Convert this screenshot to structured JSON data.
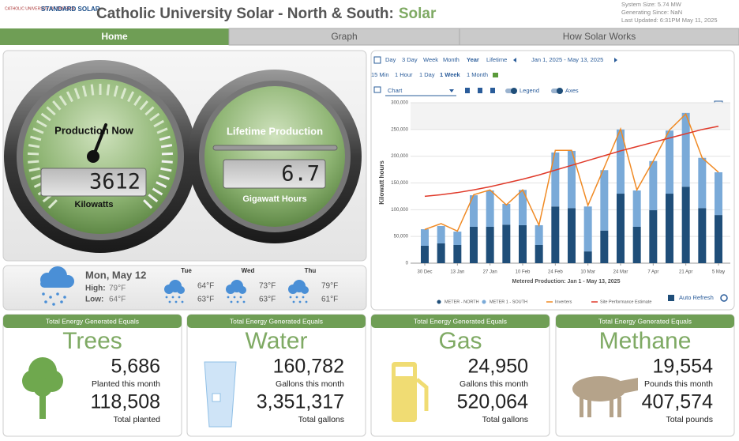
{
  "header": {
    "logo_left": "CATHOLIC UNIVERSITY OF AMERICA",
    "logo_right": "STANDARD SOLAR",
    "title": "Catholic University Solar - North & South:",
    "title_accent": "Solar",
    "info": [
      "System Size: 5.74 MW",
      "Generating Since: NaN",
      "Last Updated: 6:31PM May 11, 2025"
    ]
  },
  "tabs": [
    "Home",
    "Graph",
    "How Solar Works"
  ],
  "gauges": [
    {
      "label": "Production Now",
      "value": "3612",
      "unit": "Kilowatts"
    },
    {
      "label": "Lifetime Production",
      "value": "6.7",
      "unit": "Gigawatt Hours"
    }
  ],
  "weather": {
    "today": {
      "day": "Mon, May 12",
      "high_label": "High:",
      "high": "79°F",
      "low_label": "Low:",
      "low": "64°F"
    },
    "forecast": [
      {
        "day": "Tue",
        "high": "64°F",
        "low": "63°F"
      },
      {
        "day": "Wed",
        "high": "73°F",
        "low": "63°F"
      },
      {
        "day": "Thu",
        "high": "79°F",
        "low": "61°F"
      }
    ]
  },
  "controls": {
    "ranges": [
      "Day",
      "3 Day",
      "Week",
      "Month",
      "Year",
      "Lifetime"
    ],
    "date_range": "Jan 1, 2025 - May 13, 2025",
    "intervals": [
      "15 Min",
      "1 Hour",
      "1 Day",
      "1 Week",
      "1 Month"
    ],
    "chart_select": "Chart",
    "toggles": [
      "Legend",
      "Axes"
    ],
    "auto_refresh": "Auto Refresh"
  },
  "chart_data": {
    "type": "bar",
    "stacked": true,
    "ylabel": "Kilowatt hours",
    "xlabel": "Metered Production: Jan 1 - May 13, 2025",
    "categories": [
      "30 Dec",
      null,
      "13 Jan",
      null,
      "27 Jan",
      null,
      "10 Feb",
      null,
      "24 Feb",
      null,
      "10 Mar",
      null,
      "24 Mar",
      null,
      "7 Apr",
      null,
      "21 Apr",
      null,
      "5 May"
    ],
    "series": [
      {
        "name": "METER - NORTH",
        "type": "bar",
        "color": "#1f4e79",
        "values": [
          32500,
          37000,
          34000,
          68000,
          68000,
          72000,
          71000,
          34000,
          106000,
          103000,
          22000,
          61000,
          130000,
          68000,
          99000,
          130000,
          143000,
          103000,
          90000
        ]
      },
      {
        "name": "METER 1 - SOUTH",
        "type": "bar",
        "color": "#7aaad8",
        "values": [
          31000,
          32500,
          25000,
          59000,
          68000,
          39000,
          66000,
          37000,
          101000,
          107000,
          84000,
          113000,
          120000,
          68000,
          92000,
          118000,
          138000,
          94000,
          80000
        ]
      },
      {
        "name": "Inverters",
        "type": "line",
        "color": "#f08a24",
        "values": [
          63000,
          74000,
          60000,
          128000,
          137000,
          109000,
          137000,
          71000,
          211000,
          211000,
          108000,
          179000,
          251000,
          137000,
          191000,
          249000,
          279000,
          197000,
          170000
        ]
      },
      {
        "name": "Site Performance Estimate",
        "type": "line",
        "color": "#e03a2a",
        "values": [
          125000,
          128000,
          132000,
          137000,
          143000,
          150000,
          157000,
          165000,
          174000,
          183000,
          192000,
          201000,
          210000,
          218000,
          226000,
          234000,
          242000,
          250000,
          256000
        ]
      }
    ],
    "ylim": [
      0,
      300000
    ],
    "yticks": [
      0,
      {
        "value": 50000,
        "label": "50,000"
      },
      {
        "value": 100000,
        "label": "100,000"
      },
      {
        "value": 150000,
        "label": "150,000"
      },
      {
        "value": 200000,
        "label": "200,000"
      },
      {
        "value": 250000,
        "label": "250,000"
      },
      {
        "value": 300000,
        "label": "300,000"
      }
    ],
    "grid": true
  },
  "cards": [
    {
      "header": "Total Energy Generated Equals",
      "title": "Trees",
      "value1": "5,686",
      "label1": "Planted this month",
      "value2": "118,508",
      "label2": "Total planted"
    },
    {
      "header": "Total Energy Generated Equals",
      "title": "Water",
      "value1": "160,782",
      "label1": "Gallons this month",
      "value2": "3,351,317",
      "label2": "Total gallons"
    },
    {
      "header": "Total Energy Generated Equals",
      "title": "Gas",
      "value1": "24,950",
      "label1": "Gallons this month",
      "value2": "520,064",
      "label2": "Total gallons"
    },
    {
      "header": "Total Energy Generated Equals",
      "title": "Methane",
      "value1": "19,554",
      "label1": "Pounds this month",
      "value2": "407,574",
      "label2": "Total pounds"
    }
  ]
}
